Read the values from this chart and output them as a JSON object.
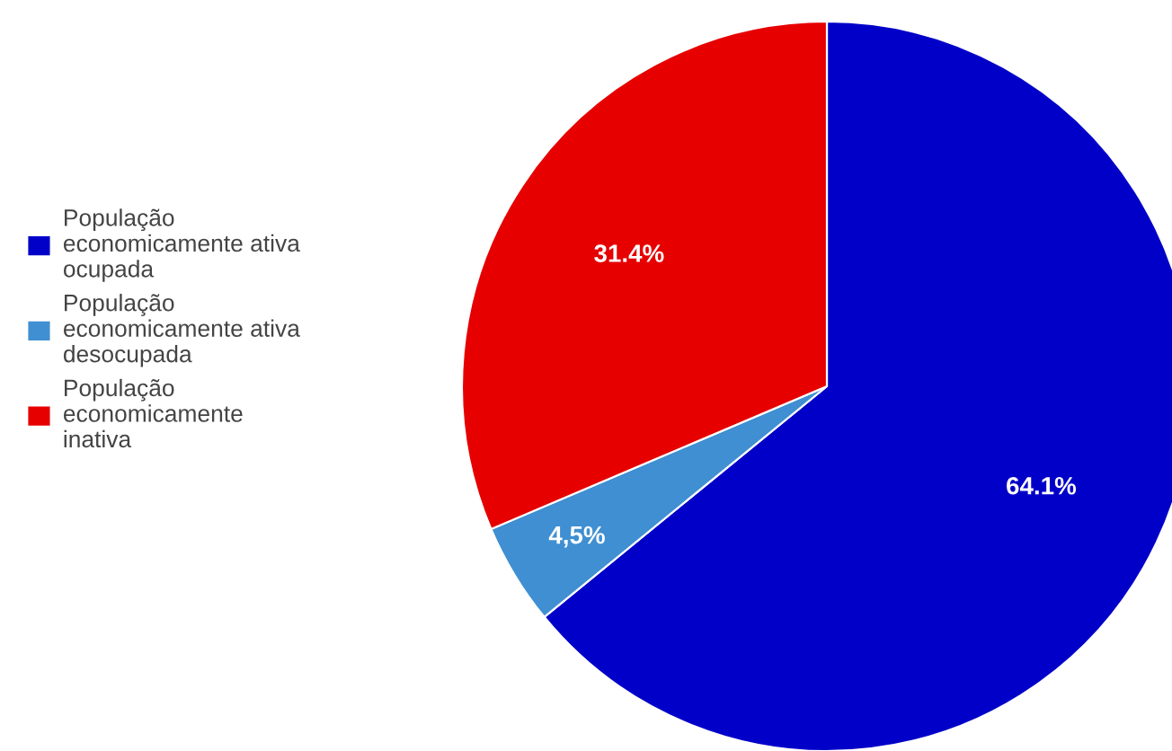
{
  "chart_data": {
    "type": "pie",
    "categories": [
      "População\neconomicamente ativa\nocupada",
      "População\neconomicamente ativa\ndesocupada",
      "População\neconomicamente\ninativa"
    ],
    "values": [
      64.1,
      4.5,
      31.4
    ],
    "value_labels": [
      "64.1%",
      "4,5%",
      "31.4%"
    ],
    "colors": [
      "#0000c8",
      "#3f8fd2",
      "#e60000"
    ],
    "legend": "left"
  }
}
